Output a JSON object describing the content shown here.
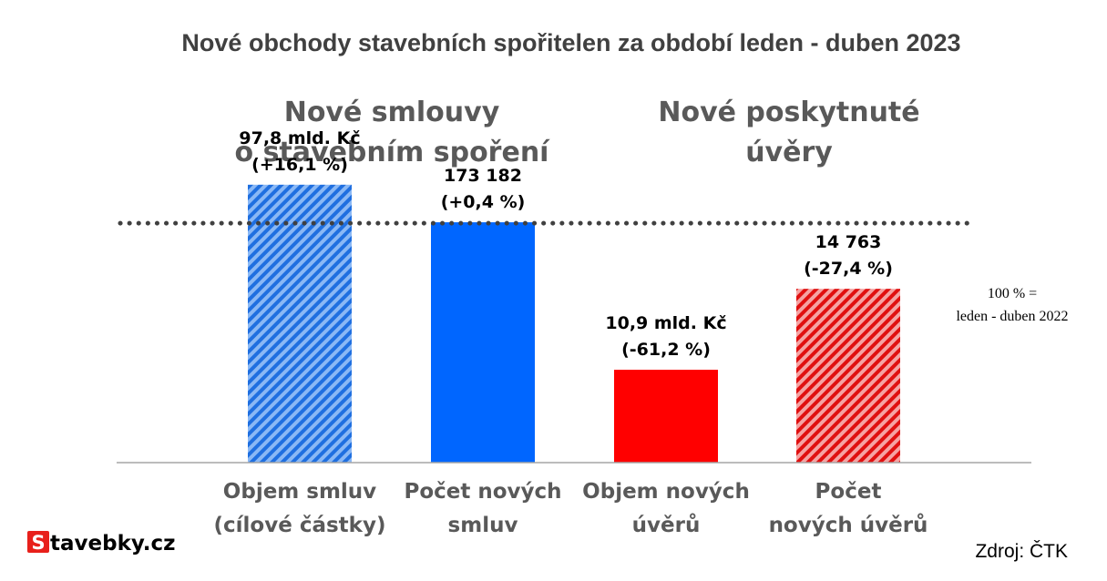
{
  "chart_data": {
    "type": "bar",
    "title": "Nové obchody stavebních spořitelen za období leden - duben 2023",
    "group_headers": [
      {
        "line1": "Nové smlouvy",
        "line2": "o stavebním spoření"
      },
      {
        "line1": "Nové poskytnuté",
        "line2": "úvěry"
      }
    ],
    "categories": [
      {
        "line1": "Objem smluv",
        "line2": "(cílové částky)"
      },
      {
        "line1": "Počet  nových",
        "line2": "smluv"
      },
      {
        "line1": "Objem nových",
        "line2": "úvěrů"
      },
      {
        "line1": "Počet",
        "line2": "nových úvěrů"
      }
    ],
    "values": [
      116.1,
      100.4,
      38.8,
      72.6
    ],
    "value_unit": "% of leden - duben 2022",
    "data_labels": [
      {
        "line1": "97,8 mld. Kč",
        "line2": "(+16,1 %)"
      },
      {
        "line1": "173 182",
        "line2": "(+0,4 %)"
      },
      {
        "line1": "10,9 mld. Kč",
        "line2": "(-61,2 %)"
      },
      {
        "line1": "14 763",
        "line2": "(-27,4 %)"
      }
    ],
    "bar_styles": [
      "hatched",
      "solid",
      "solid",
      "hatched"
    ],
    "bar_colors": [
      "#3a87f0",
      "#0066ff",
      "#ff0000",
      "#e83030"
    ],
    "reference_line": {
      "value": 100,
      "label_line1": "100 % =",
      "label_line2": "leden - duben 2022",
      "style": "dotted"
    },
    "ylim": [
      0,
      140
    ],
    "grid": false,
    "legend": "none"
  },
  "footer": {
    "logo_letter": "S",
    "logo_text": "tavebky.cz",
    "source": "Zdroj: ČTK"
  }
}
